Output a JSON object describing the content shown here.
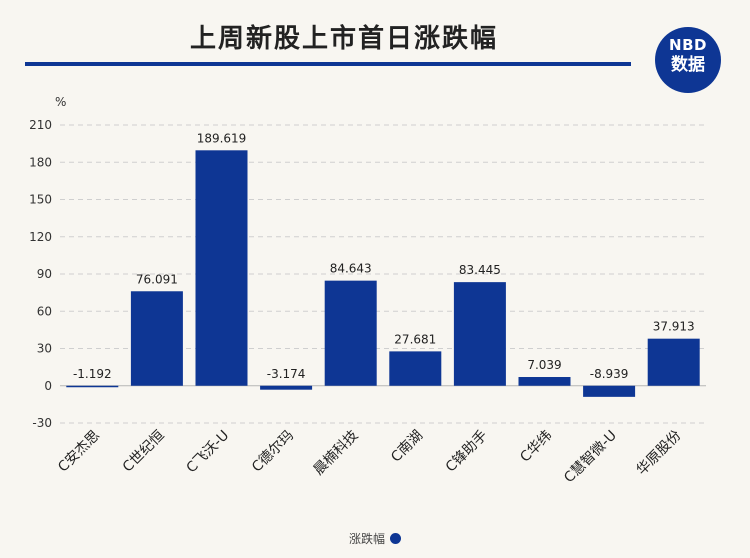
{
  "title": "上周新股上市首日涨跌幅",
  "logo": {
    "top": "NBD",
    "bottom": "数据"
  },
  "colors": {
    "bar": "#0e3694",
    "accent": "#0e3694",
    "grid": "#cfcfcf",
    "axis": "#b5b5b5"
  },
  "chart_data": {
    "type": "bar",
    "categories": [
      "C安杰思",
      "C世纪恒",
      "C飞沃-U",
      "C德尔玛",
      "晨楠科技",
      "C南湖",
      "C锋助手",
      "C华纬",
      "C慧智微-U",
      "华原股份"
    ],
    "series": [
      {
        "name": "涨跌幅",
        "values": [
          -1.192,
          76.091,
          189.619,
          -3.174,
          84.643,
          27.681,
          83.445,
          7.039,
          -8.939,
          37.913
        ]
      }
    ],
    "value_labels": [
      "-1.192",
      "76.091",
      "189.619",
      "-3.174",
      "84.643",
      "27.681",
      "83.445",
      "7.039",
      "-8.939",
      "37.913"
    ],
    "ylabel": "%",
    "yticks": [
      210,
      180,
      150,
      120,
      90,
      60,
      30,
      0,
      -30
    ],
    "ylim": [
      -30,
      210
    ],
    "grid": true,
    "legend": "bottom-center"
  }
}
